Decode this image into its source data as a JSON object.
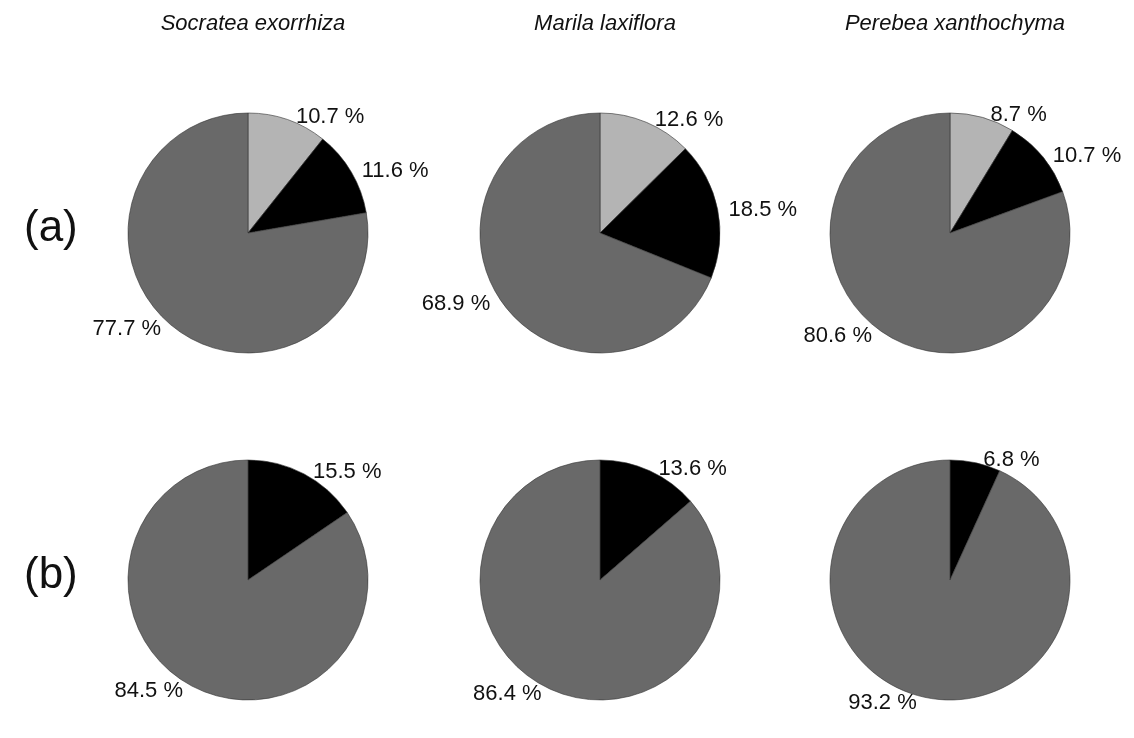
{
  "chart_data": [
    {
      "type": "pie",
      "title": "Socratea exorrhiza",
      "annotations": [
        "(a)"
      ],
      "categories": [
        null,
        null,
        null
      ],
      "values": [
        10.7,
        11.6,
        77.7
      ],
      "value_labels": [
        "10.7 %",
        "11.6 %",
        "77.7 %"
      ],
      "colors": [
        "#b4b4b4",
        "#000000",
        "#696969"
      ]
    },
    {
      "type": "pie",
      "title": "Marila laxiflora",
      "categories": [
        null,
        null,
        null
      ],
      "values": [
        12.6,
        18.5,
        68.9
      ],
      "value_labels": [
        "12.6 %",
        "18.5 %",
        "68.9 %"
      ],
      "colors": [
        "#b4b4b4",
        "#000000",
        "#696969"
      ]
    },
    {
      "type": "pie",
      "title": "Perebea xanthochyma",
      "categories": [
        null,
        null,
        null
      ],
      "values": [
        8.7,
        10.7,
        80.6
      ],
      "value_labels": [
        "8.7 %",
        "10.7 %",
        "80.6 %"
      ],
      "colors": [
        "#b4b4b4",
        "#000000",
        "#696969"
      ]
    },
    {
      "type": "pie",
      "annotations": [
        "(b)"
      ],
      "categories": [
        null,
        null
      ],
      "values": [
        15.5,
        84.5
      ],
      "value_labels": [
        "15.5 %",
        "84.5 %"
      ],
      "colors": [
        "#000000",
        "#696969"
      ]
    },
    {
      "type": "pie",
      "categories": [
        null,
        null
      ],
      "values": [
        13.6,
        86.4
      ],
      "value_labels": [
        "13.6 %",
        "86.4 %"
      ],
      "colors": [
        "#000000",
        "#696969"
      ]
    },
    {
      "type": "pie",
      "categories": [
        null,
        null
      ],
      "values": [
        6.8,
        93.2
      ],
      "value_labels": [
        "6.8 %",
        "93.2 %"
      ],
      "colors": [
        "#000000",
        "#696969"
      ]
    }
  ]
}
